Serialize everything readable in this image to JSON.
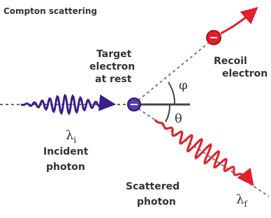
{
  "title": "Compton scattering",
  "target_label": [
    "Target",
    "electron",
    "at rest"
  ],
  "recoil_label": [
    "Recoil",
    "electron"
  ],
  "incident_label": [
    "Incident",
    "photon"
  ],
  "scattered_label": [
    "Scattered",
    "photon"
  ],
  "angle_phi": "φ",
  "angle_theta": "θ",
  "incident_wavelength": {
    "symbol": "λ",
    "subscript": "i"
  },
  "scattered_wavelength": {
    "symbol": "λ",
    "subscript": "f"
  }
}
